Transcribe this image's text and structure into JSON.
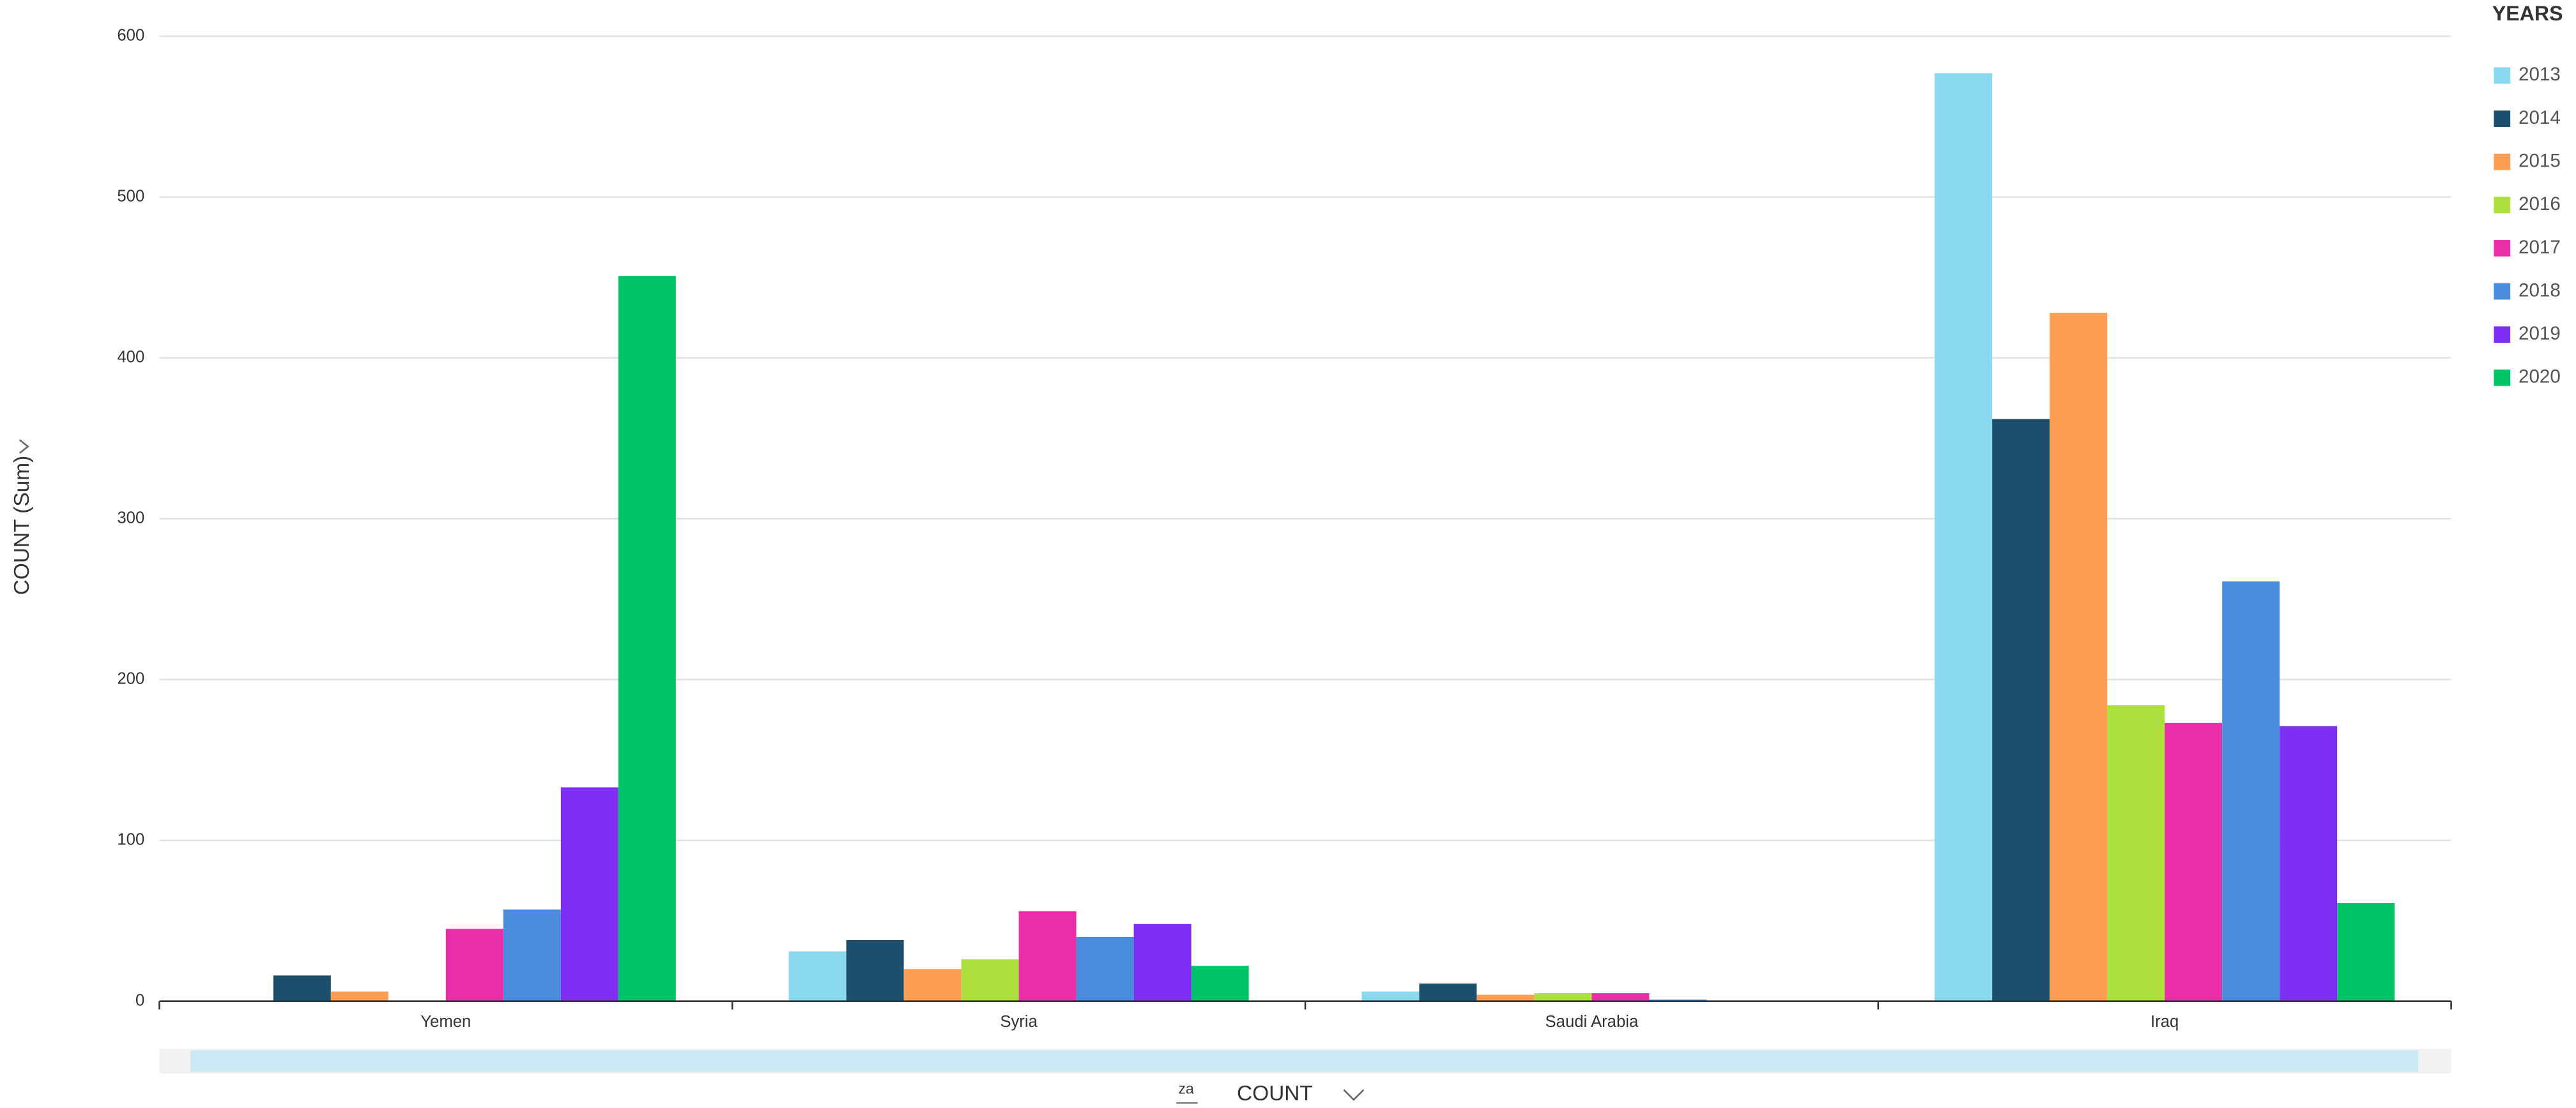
{
  "chart_data": {
    "type": "bar",
    "y_label": "COUNT (Sum)",
    "x_label": "COUNT",
    "x_sort_icon": "za",
    "legend_title": "YEARS",
    "categories": [
      "Yemen",
      "Syria",
      "Saudi Arabia",
      "Iraq"
    ],
    "series": [
      {
        "name": "2013",
        "color": "#8ad9ef",
        "values": [
          null,
          31,
          6,
          577
        ]
      },
      {
        "name": "2014",
        "color": "#1b4f6c",
        "values": [
          16,
          38,
          11,
          362
        ]
      },
      {
        "name": "2015",
        "color": "#fb9d52",
        "values": [
          6,
          20,
          4,
          428
        ]
      },
      {
        "name": "2016",
        "color": "#addf3f",
        "values": [
          null,
          26,
          5,
          184
        ]
      },
      {
        "name": "2017",
        "color": "#e92fa8",
        "values": [
          45,
          56,
          5,
          173
        ]
      },
      {
        "name": "2018",
        "color": "#4a8bdc",
        "values": [
          57,
          40,
          1,
          261
        ]
      },
      {
        "name": "2019",
        "color": "#7d2ff3",
        "values": [
          133,
          48,
          null,
          171
        ]
      },
      {
        "name": "2020",
        "color": "#00c266",
        "values": [
          451,
          22,
          null,
          61
        ]
      }
    ],
    "ylim": [
      0,
      600
    ],
    "yticks": [
      0,
      100,
      200,
      300,
      400,
      500,
      600
    ],
    "grid": true,
    "legend": "right"
  }
}
